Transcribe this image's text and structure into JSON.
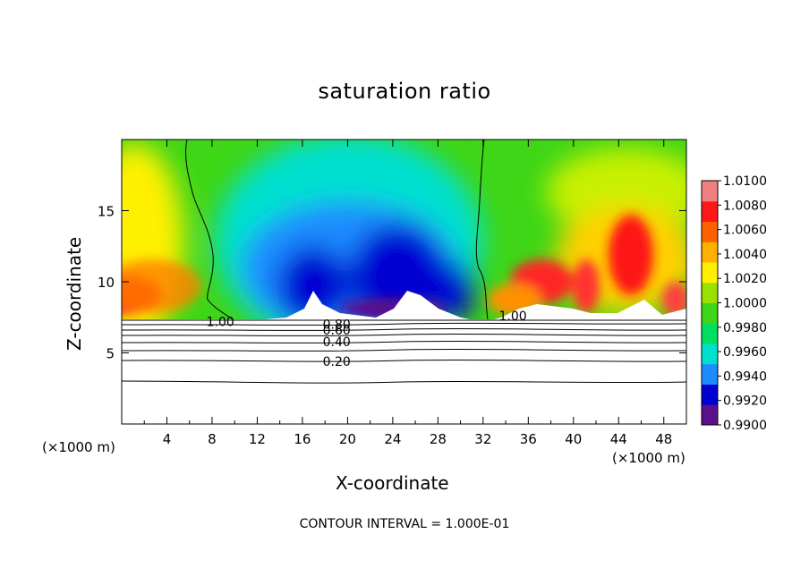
{
  "chart_data": {
    "type": "heatmap",
    "title": "saturation ratio",
    "xlabel": "X-coordinate",
    "ylabel": "Z-coordinate",
    "x_unit_left": "(×1000 m)",
    "x_unit_right": "(×1000 m)",
    "xlim": [
      0,
      50
    ],
    "ylim": [
      0,
      20
    ],
    "x_ticks": [
      4,
      8,
      12,
      16,
      20,
      24,
      28,
      32,
      36,
      40,
      44,
      48
    ],
    "x_tick_labels": [
      "4",
      "8",
      "12",
      "16",
      "20",
      "24",
      "28",
      "32",
      "36",
      "40",
      "44",
      "48"
    ],
    "y_ticks": [
      5,
      10,
      15
    ],
    "y_tick_labels": [
      "5",
      "10",
      "15"
    ],
    "colorbar": {
      "min": 0.99,
      "max": 1.01,
      "labels": [
        "1.0100",
        "1.0080",
        "1.0060",
        "1.0040",
        "1.0020",
        "1.0000",
        "0.9980",
        "0.9960",
        "0.9940",
        "0.9920",
        "0.9900"
      ],
      "colors": [
        "#5a0f8c",
        "#0000d2",
        "#1e8cff",
        "#00e0d0",
        "#00e060",
        "#3ed616",
        "#9ae000",
        "#fff000",
        "#ffb000",
        "#ff6000",
        "#ff1818",
        "#f08080"
      ]
    },
    "contours": [
      {
        "label": "1.00",
        "label_x": 7.5,
        "label_y": 7.2
      },
      {
        "label": "0.80",
        "label_x": 17.8,
        "label_y": 7.0
      },
      {
        "label": "0.60",
        "label_x": 17.8,
        "label_y": 6.6
      },
      {
        "label": "0.40",
        "label_x": 17.8,
        "label_y": 5.8
      },
      {
        "label": "0.20",
        "label_x": 17.8,
        "label_y": 4.4
      },
      {
        "label": "1.00",
        "label_x": 33.4,
        "label_y": 7.6
      }
    ],
    "boundary_z": 7.2
  },
  "footer": {
    "contour_interval": "CONTOUR INTERVAL = 1.000E-01"
  }
}
